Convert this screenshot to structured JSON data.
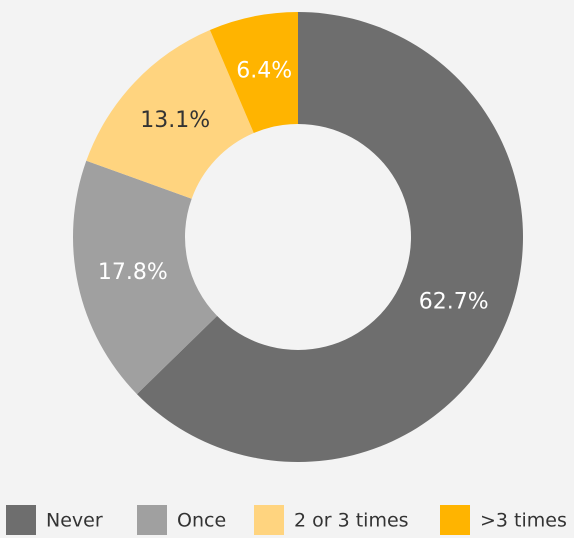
{
  "chart_data": {
    "type": "donut",
    "categories": [
      "Never",
      "Once",
      "2 or 3 times",
      ">3 times"
    ],
    "values": [
      62.7,
      17.8,
      13.1,
      6.4
    ],
    "value_labels": [
      "62.7%",
      "17.8%",
      "13.1%",
      "6.4%"
    ],
    "colors": [
      "#6e6e6e",
      "#a0a0a0",
      "#ffd47f",
      "#ffb400"
    ],
    "legend": "bottom"
  }
}
